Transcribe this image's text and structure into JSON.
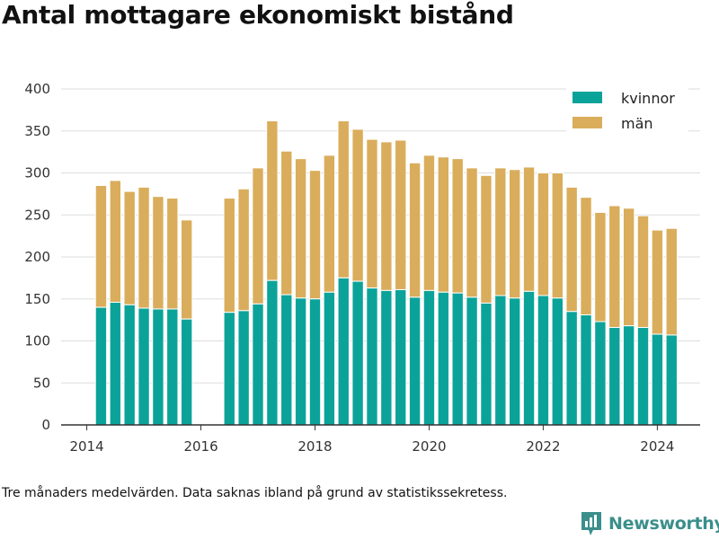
{
  "title": "Antal mottagare ekonomiskt bistånd",
  "footnote": "Tre månaders medelvärden. Data saknas ibland på grund av statistikssekretess.",
  "brand": {
    "name": "Newsworthy"
  },
  "colors": {
    "kvinnor": "#0ba399",
    "man": "#d9ad5b",
    "grid": "#dddddd",
    "axis": "#333333"
  },
  "chart_data": {
    "type": "bar",
    "stacked": true,
    "x_unit": "year (fractional, quarterly)",
    "xlim": [
      2013.55,
      2024.75
    ],
    "ylim": [
      0,
      400
    ],
    "y_ticks": [
      0,
      50,
      100,
      150,
      200,
      250,
      300,
      350,
      400
    ],
    "x_ticks": [
      2014,
      2016,
      2018,
      2020,
      2022,
      2024
    ],
    "grid": "horizontal",
    "legend_position": "top-right",
    "x": [
      2014.25,
      2014.5,
      2014.75,
      2015.0,
      2015.25,
      2015.5,
      2015.75,
      2016.5,
      2016.75,
      2017.0,
      2017.25,
      2017.5,
      2017.75,
      2018.0,
      2018.25,
      2018.5,
      2018.75,
      2019.0,
      2019.25,
      2019.5,
      2019.75,
      2020.0,
      2020.25,
      2020.5,
      2020.75,
      2021.0,
      2021.25,
      2021.5,
      2021.75,
      2022.0,
      2022.25,
      2022.5,
      2022.75,
      2023.0,
      2023.25,
      2023.5,
      2023.75,
      2024.0,
      2024.25
    ],
    "series": [
      {
        "name": "kvinnor",
        "values": [
          140,
          146,
          143,
          139,
          138,
          138,
          126,
          134,
          136,
          144,
          172,
          155,
          151,
          150,
          158,
          175,
          171,
          163,
          160,
          161,
          152,
          160,
          158,
          157,
          152,
          145,
          154,
          151,
          159,
          154,
          151,
          135,
          131,
          123,
          116,
          118,
          116,
          108,
          107
        ]
      },
      {
        "name": "män",
        "values": [
          145,
          145,
          135,
          144,
          134,
          132,
          118,
          136,
          145,
          162,
          190,
          171,
          166,
          153,
          163,
          187,
          181,
          177,
          177,
          178,
          160,
          161,
          161,
          160,
          154,
          152,
          152,
          153,
          148,
          146,
          149,
          148,
          140,
          130,
          145,
          140,
          133,
          124,
          127
        ]
      }
    ]
  }
}
